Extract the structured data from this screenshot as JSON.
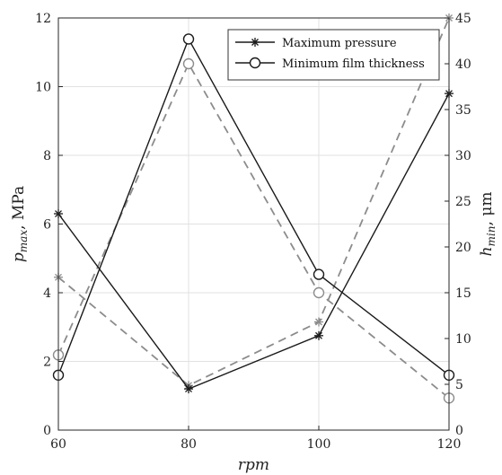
{
  "chart_data": {
    "type": "line",
    "x": [
      60,
      80,
      100,
      120
    ],
    "x_ticks": [
      "60",
      "80",
      "100",
      "120"
    ],
    "xlim": [
      60,
      120
    ],
    "xlabel": "rpm",
    "ylabel_left": {
      "base": "p",
      "sub": "max",
      "suffix": ", MPa"
    },
    "ylabel_right": {
      "base": "h",
      "sub": "min",
      "suffix": ", μm"
    },
    "ylim_left": [
      0,
      12
    ],
    "ylim_right": [
      0,
      45
    ],
    "y_ticks_left": [
      "0",
      "2",
      "4",
      "6",
      "8",
      "10",
      "12"
    ],
    "y_ticks_right": [
      "0",
      "5",
      "10",
      "15",
      "20",
      "25",
      "30",
      "35",
      "40",
      "45"
    ],
    "grid": true,
    "legend_position": "top-right",
    "series": [
      {
        "name": "Maximum pressure",
        "axis": "left",
        "style": "solid",
        "marker": "star",
        "color": "#1a1a1a",
        "values": [
          6.3,
          1.2,
          2.75,
          9.8
        ]
      },
      {
        "name": "Minimum film thickness",
        "axis": "right",
        "style": "solid",
        "marker": "circle",
        "color": "#1a1a1a",
        "values": [
          6.0,
          42.7,
          17.0,
          6.0
        ]
      },
      {
        "axis": "left",
        "style": "dashed",
        "marker": "star",
        "color": "#8c8c8c",
        "values": [
          4.45,
          1.3,
          3.15,
          12.0
        ]
      },
      {
        "axis": "right",
        "style": "dashed",
        "marker": "circle",
        "color": "#8c8c8c",
        "values": [
          8.2,
          40.0,
          15.0,
          3.5
        ]
      }
    ]
  }
}
